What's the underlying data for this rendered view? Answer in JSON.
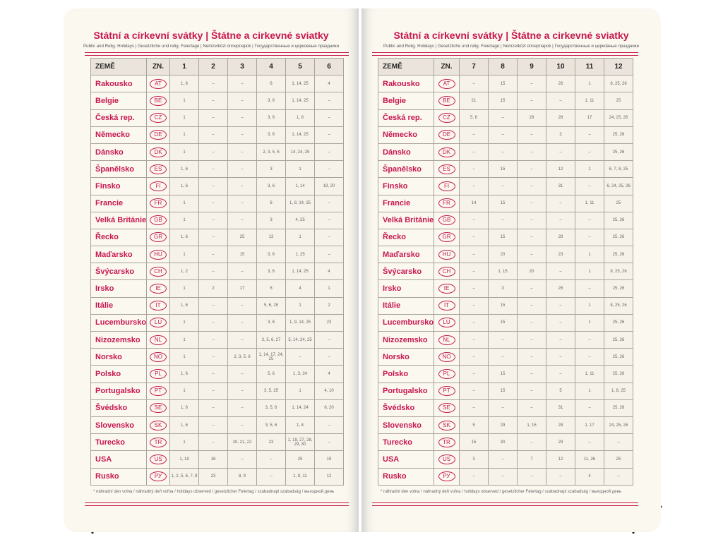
{
  "pages": [
    {
      "title": "Státní a církevní svátky | Štátne a cirkevné sviatky",
      "subtitle": "Public and Relig. Holidays | Gesetzliche und relig. Feiertage | Nemzetközi ünnepnapok | Государственные и церковные праздники",
      "table": {
        "header": [
          "ZEMĚ",
          "ZN.",
          "1",
          "2",
          "3",
          "4",
          "5",
          "6"
        ],
        "rows": [
          [
            "Rakousko",
            "AT",
            "1, 6",
            "–",
            "–",
            "6",
            "1, 14, 25",
            "4"
          ],
          [
            "Belgie",
            "BE",
            "1",
            "–",
            "–",
            "3, 6",
            "1, 14, 25",
            "–"
          ],
          [
            "Česká rep.",
            "CZ",
            "1",
            "–",
            "–",
            "3, 6",
            "1, 8",
            "–"
          ],
          [
            "Německo",
            "DE",
            "1",
            "–",
            "–",
            "3, 6",
            "1, 14, 25",
            "–"
          ],
          [
            "Dánsko",
            "DK",
            "1",
            "–",
            "–",
            "2, 3, 5, 6",
            "14, 24, 25",
            "–"
          ],
          [
            "Španělsko",
            "ES",
            "1, 6",
            "–",
            "–",
            "3",
            "1",
            "–"
          ],
          [
            "Finsko",
            "FI",
            "1, 6",
            "–",
            "–",
            "3, 6",
            "1, 14",
            "19, 20"
          ],
          [
            "Francie",
            "FR",
            "1",
            "–",
            "–",
            "6",
            "1, 8, 14, 25",
            "–"
          ],
          [
            "Velká Británie",
            "GB",
            "1",
            "–",
            "–",
            "3",
            "4, 25",
            "–"
          ],
          [
            "Řecko",
            "GR",
            "1, 6",
            "–",
            "25",
            "13",
            "1",
            "–"
          ],
          [
            "Maďarsko",
            "HU",
            "1",
            "–",
            "15",
            "3, 6",
            "1, 25",
            "–"
          ],
          [
            "Švýcarsko",
            "CH",
            "1, 2",
            "–",
            "–",
            "3, 6",
            "1, 14, 25",
            "4"
          ],
          [
            "Irsko",
            "IE",
            "1",
            "2",
            "17",
            "6",
            "4",
            "1"
          ],
          [
            "Itálie",
            "IT",
            "1, 6",
            "–",
            "–",
            "5, 6, 25",
            "1",
            "2"
          ],
          [
            "Lucembursko",
            "LU",
            "1",
            "–",
            "–",
            "3, 6",
            "1, 9, 14, 25",
            "23"
          ],
          [
            "Nizozemsko",
            "NL",
            "1",
            "–",
            "–",
            "3, 5, 6, 27",
            "5, 14, 24, 25",
            "–"
          ],
          [
            "Norsko",
            "NO",
            "1",
            "–",
            "2, 3, 5, 6",
            "1, 14, 17, 24, 25",
            "–",
            "–"
          ],
          [
            "Polsko",
            "PL",
            "1, 6",
            "–",
            "–",
            "5, 6",
            "1, 3, 24",
            "4"
          ],
          [
            "Portugalsko",
            "PT",
            "1",
            "–",
            "–",
            "3, 5, 25",
            "1",
            "4, 10"
          ],
          [
            "Švédsko",
            "SE",
            "1, 6",
            "–",
            "–",
            "3, 5, 6",
            "1, 14, 24",
            "6, 20"
          ],
          [
            "Slovensko",
            "SK",
            "1, 6",
            "–",
            "–",
            "3, 5, 6",
            "1, 8",
            "–"
          ],
          [
            "Turecko",
            "TR",
            "1",
            "–",
            "20, 21, 22",
            "23",
            "1, 19, 27, 28, 29, 30",
            "–"
          ],
          [
            "USA",
            "US",
            "1, 19",
            "16",
            "–",
            "–",
            "25",
            "19"
          ],
          [
            "Rusko",
            "РУ",
            "1, 2, 5, 6, 7, 8",
            "23",
            "8, 9",
            "–",
            "1, 9, 11",
            "12"
          ]
        ]
      },
      "footnote": "* náhradní den volna / náhradný deň voľna / holidays observed / gesetzlicher Feiertag / szabadnapi szabadság / выходной день"
    },
    {
      "title": "Státní a církevní svátky | Štátne a cirkevné sviatky",
      "subtitle": "Public and Relig. Holidays | Gesetzliche und relig. Feiertage | Nemzetközi ünnepnapok | Государственные и церковные праздники",
      "table": {
        "header": [
          "ZEMĚ",
          "ZN.",
          "7",
          "8",
          "9",
          "10",
          "11",
          "12"
        ],
        "rows": [
          [
            "Rakousko",
            "AT",
            "–",
            "15",
            "–",
            "26",
            "1",
            "8, 25, 26"
          ],
          [
            "Belgie",
            "BE",
            "21",
            "15",
            "–",
            "–",
            "1, 11",
            "25"
          ],
          [
            "Česká rep.",
            "CZ",
            "5, 6",
            "–",
            "28",
            "28",
            "17",
            "24, 25, 26"
          ],
          [
            "Německo",
            "DE",
            "–",
            "–",
            "–",
            "3",
            "–",
            "25, 26"
          ],
          [
            "Dánsko",
            "DK",
            "–",
            "–",
            "–",
            "–",
            "–",
            "25, 26"
          ],
          [
            "Španělsko",
            "ES",
            "–",
            "15",
            "–",
            "12",
            "1",
            "6, 7, 8, 25"
          ],
          [
            "Finsko",
            "FI",
            "–",
            "–",
            "–",
            "31",
            "–",
            "6, 24, 25, 26"
          ],
          [
            "Francie",
            "FR",
            "14",
            "15",
            "–",
            "–",
            "1, 11",
            "25"
          ],
          [
            "Velká Británie",
            "GB",
            "–",
            "–",
            "–",
            "–",
            "–",
            "25, 26"
          ],
          [
            "Řecko",
            "GR",
            "–",
            "15",
            "–",
            "28",
            "–",
            "25, 26"
          ],
          [
            "Maďarsko",
            "HU",
            "–",
            "20",
            "–",
            "23",
            "1",
            "25, 26"
          ],
          [
            "Švýcarsko",
            "CH",
            "–",
            "1, 15",
            "20",
            "–",
            "1",
            "8, 25, 26"
          ],
          [
            "Irsko",
            "IE",
            "–",
            "3",
            "–",
            "26",
            "–",
            "25, 26"
          ],
          [
            "Itálie",
            "IT",
            "–",
            "15",
            "–",
            "–",
            "1",
            "8, 25, 26"
          ],
          [
            "Lucembursko",
            "LU",
            "–",
            "15",
            "–",
            "–",
            "1",
            "25, 26"
          ],
          [
            "Nizozemsko",
            "NL",
            "–",
            "–",
            "–",
            "–",
            "–",
            "25, 26"
          ],
          [
            "Norsko",
            "NO",
            "–",
            "–",
            "–",
            "–",
            "–",
            "25, 26"
          ],
          [
            "Polsko",
            "PL",
            "–",
            "15",
            "–",
            "–",
            "1, 11",
            "25, 26"
          ],
          [
            "Portugalsko",
            "PT",
            "–",
            "15",
            "–",
            "5",
            "1",
            "1, 8, 25"
          ],
          [
            "Švédsko",
            "SE",
            "–",
            "–",
            "–",
            "31",
            "–",
            "25, 26"
          ],
          [
            "Slovensko",
            "SK",
            "5",
            "29",
            "1, 15",
            "28",
            "1, 17",
            "24, 25, 26"
          ],
          [
            "Turecko",
            "TR",
            "15",
            "30",
            "–",
            "29",
            "–",
            "–"
          ],
          [
            "USA",
            "US",
            "3",
            "–",
            "7",
            "12",
            "11, 26",
            "25"
          ],
          [
            "Rusko",
            "РУ",
            "–",
            "–",
            "–",
            "–",
            "4",
            "–"
          ]
        ]
      },
      "footnote": "* náhradní den volna / náhradný deň voľna / holidays observed / gesetzlicher Feiertag / szabadnapi szabadság / выходной день"
    }
  ]
}
